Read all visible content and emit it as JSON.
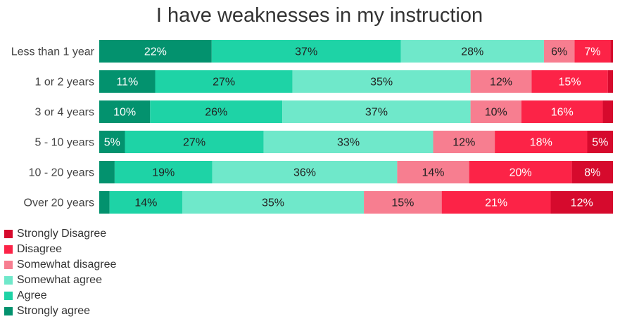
{
  "chart_data": {
    "type": "bar",
    "orientation": "horizontal",
    "stacked": true,
    "title": "I have weaknesses in my instruction",
    "xlabel": "",
    "ylabel": "",
    "xlim": [
      0,
      100
    ],
    "grid": false,
    "legend_position": "bottom-left",
    "categories": [
      "Less than 1 year",
      "1 or 2 years",
      "3 or 4 years",
      "5 - 10 years",
      "10 - 20 years",
      "Over 20 years"
    ],
    "series": [
      {
        "name": "Strongly agree",
        "color": "#03926e",
        "values": [
          22,
          11,
          10,
          5,
          3,
          2
        ],
        "labels": [
          "22%",
          "11%",
          "10%",
          "5%",
          "",
          ""
        ]
      },
      {
        "name": "Agree",
        "color": "#1ed3a6",
        "values": [
          37,
          27,
          26,
          27,
          19,
          14
        ],
        "labels": [
          "37%",
          "27%",
          "26%",
          "27%",
          "19%",
          "14%"
        ]
      },
      {
        "name": "Somewhat agree",
        "color": "#6fe8ca",
        "values": [
          28,
          35,
          37,
          33,
          36,
          35
        ],
        "labels": [
          "28%",
          "35%",
          "37%",
          "33%",
          "36%",
          "35%"
        ]
      },
      {
        "name": "Somewhat disagree",
        "color": "#f77e90",
        "values": [
          6,
          12,
          10,
          12,
          14,
          15
        ],
        "labels": [
          "6%",
          "12%",
          "10%",
          "12%",
          "14%",
          "15%"
        ]
      },
      {
        "name": "Disagree",
        "color": "#fc2347",
        "values": [
          7,
          15,
          16,
          18,
          20,
          21
        ],
        "labels": [
          "7%",
          "15%",
          "16%",
          "18%",
          "20%",
          "21%"
        ]
      },
      {
        "name": "Strongly Disagree",
        "color": "#d60a2d",
        "values": [
          0.5,
          1,
          2,
          5,
          8,
          12
        ],
        "labels": [
          "",
          "",
          "",
          "5%",
          "8%",
          "12%"
        ]
      }
    ],
    "legend_order": [
      "Strongly Disagree",
      "Disagree",
      "Somewhat disagree",
      "Somewhat agree",
      "Agree",
      "Strongly agree"
    ],
    "label_colors": {
      "Strongly agree": "#ffffff",
      "Agree": "#222222",
      "Somewhat agree": "#222222",
      "Somewhat disagree": "#222222",
      "Disagree": "#ffffff",
      "Strongly Disagree": "#ffffff"
    }
  }
}
